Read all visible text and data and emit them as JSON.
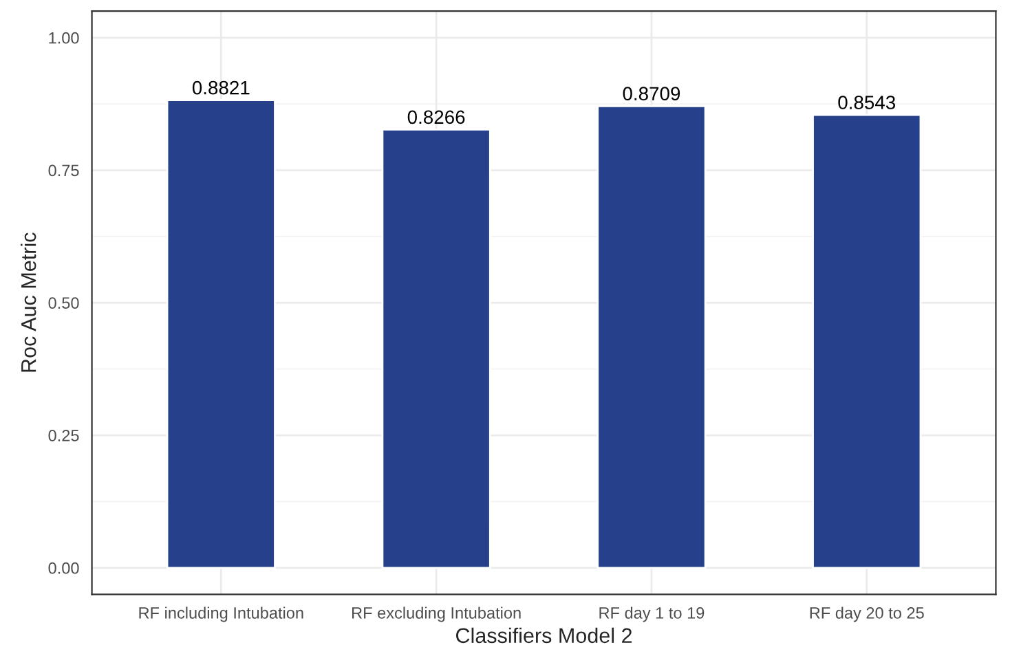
{
  "chart_data": {
    "type": "bar",
    "xlabel": "Classifiers Model 2",
    "ylabel": "Roc Auc Metric",
    "categories": [
      "RF including Intubation",
      "RF excluding Intubation",
      "RF day 1 to 19",
      "RF day 20 to 25"
    ],
    "values": [
      0.8821,
      0.8266,
      0.8709,
      0.8543
    ],
    "color": "#27408b",
    "ylim": [
      -0.05,
      1.05
    ],
    "yticks": [
      {
        "value": 0,
        "label": "0.00"
      },
      {
        "value": 0.25,
        "label": "0.25"
      },
      {
        "value": 0.5,
        "label": "0.50"
      },
      {
        "value": 0.75,
        "label": "0.75"
      },
      {
        "value": 1,
        "label": "1.00"
      }
    ],
    "grid": true,
    "data_labels": true
  }
}
